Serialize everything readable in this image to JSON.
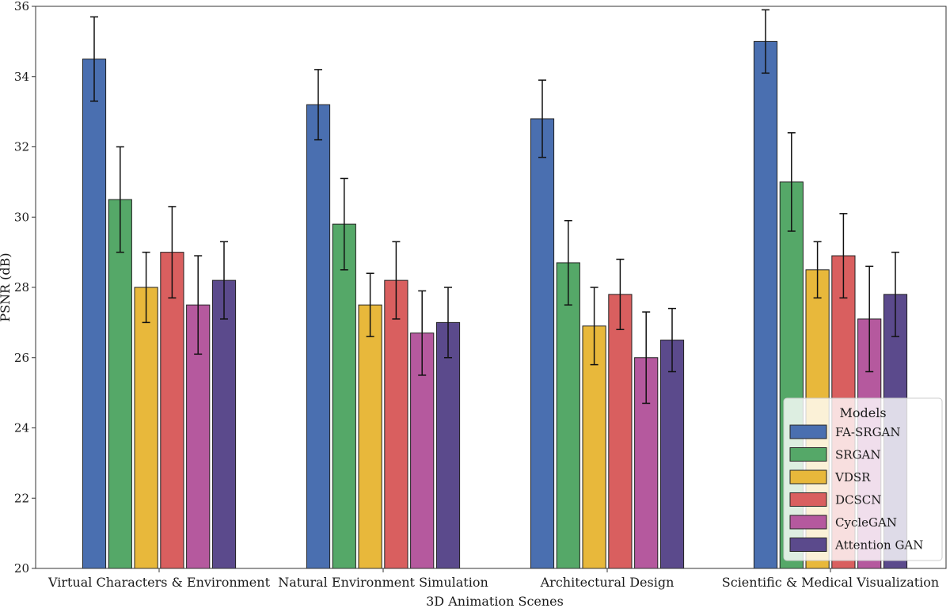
{
  "chart_data": {
    "type": "bar",
    "title": "",
    "xlabel": "3D Animation Scenes",
    "ylabel": "PSNR (dB)",
    "ylim": [
      20,
      36
    ],
    "yticks": [
      "20",
      "22",
      "24",
      "26",
      "28",
      "30",
      "32",
      "34",
      "36"
    ],
    "grid": false,
    "categories": [
      "Virtual Characters & Environment",
      "Natural Environment Simulation",
      "Architectural Design",
      "Scientific & Medical Visualization"
    ],
    "series": [
      {
        "name": "FA-SRGAN",
        "color": "#4a6fb0",
        "values": [
          34.5,
          33.2,
          32.8,
          35.0
        ],
        "errors": [
          1.2,
          1.0,
          1.1,
          0.9
        ]
      },
      {
        "name": "SRGAN",
        "color": "#55a868",
        "values": [
          30.5,
          29.8,
          28.7,
          31.0
        ],
        "errors": [
          1.5,
          1.3,
          1.2,
          1.4
        ]
      },
      {
        "name": "VDSR",
        "color": "#e8b83b",
        "values": [
          28.0,
          27.5,
          26.9,
          28.5
        ],
        "errors": [
          1.0,
          0.9,
          1.1,
          0.8
        ]
      },
      {
        "name": "DCSCN",
        "color": "#d95f5f",
        "values": [
          29.0,
          28.2,
          27.8,
          28.9
        ],
        "errors": [
          1.3,
          1.1,
          1.0,
          1.2
        ]
      },
      {
        "name": "CycleGAN",
        "color": "#b5599e",
        "values": [
          27.5,
          26.7,
          26.0,
          27.1
        ],
        "errors": [
          1.4,
          1.2,
          1.3,
          1.5
        ]
      },
      {
        "name": "Attention GAN",
        "color": "#5b4a8c",
        "values": [
          28.2,
          27.0,
          26.5,
          27.8
        ],
        "errors": [
          1.1,
          1.0,
          0.9,
          1.2
        ]
      }
    ],
    "legend": {
      "title": "Models",
      "location": "lower-right"
    }
  }
}
